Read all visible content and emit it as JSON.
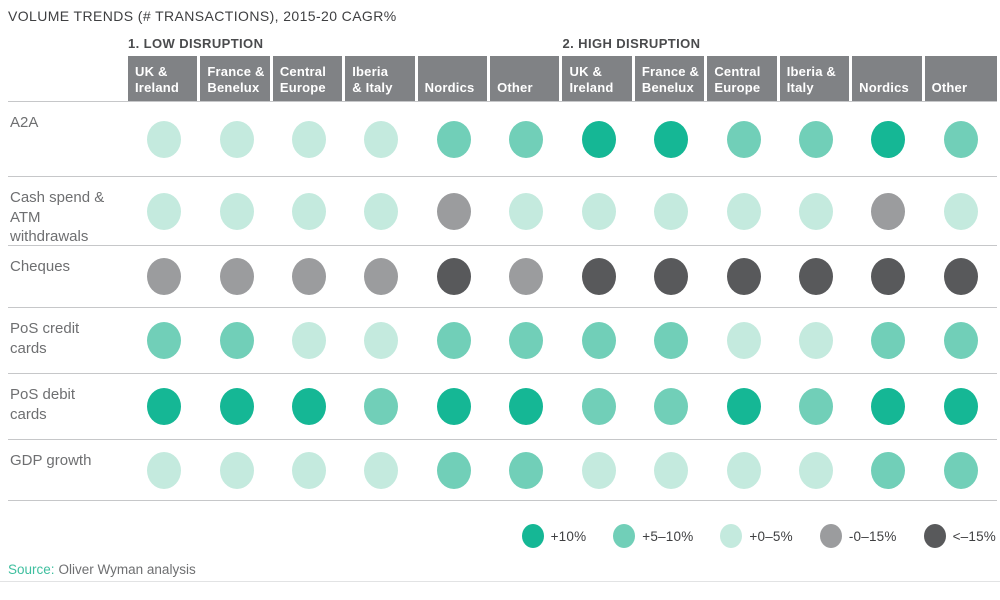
{
  "title": "VOLUME TRENDS (# TRANSACTIONS), 2015-20 CAGR%",
  "groups": [
    {
      "label": "1. LOW DISRUPTION",
      "columns": [
        "UK &\nIreland",
        "France &\nBenelux",
        "Central\nEurope",
        "Iberia\n& Italy",
        "Nordics",
        "Other"
      ]
    },
    {
      "label": "2. HIGH DISRUPTION",
      "columns": [
        "UK &\nIreland",
        "France &\nBenelux",
        "Central\nEurope",
        "Iberia &\nItaly",
        "Nordics",
        "Other"
      ]
    }
  ],
  "colors": {
    "p10": "#15b795",
    "p5_10": "#71cfb8",
    "p0_5": "#c4eade",
    "n0_15": "#9b9c9e",
    "lt_n15": "#58595b"
  },
  "legend": [
    {
      "key": "p10",
      "label": "+10%"
    },
    {
      "key": "p5_10",
      "label": "+5–10%"
    },
    {
      "key": "p0_5",
      "label": "+0–5%"
    },
    {
      "key": "n0_15",
      "label": "-0–15%"
    },
    {
      "key": "lt_n15",
      "label": "<–15%"
    }
  ],
  "chart_data": {
    "type": "heatmap",
    "title": "VOLUME TRENDS (# TRANSACTIONS), 2015-20 CAGR%",
    "column_groups": [
      "1. LOW DISRUPTION",
      "2. HIGH DISRUPTION"
    ],
    "columns": [
      "Low: UK & Ireland",
      "Low: France & Benelux",
      "Low: Central Europe",
      "Low: Iberia & Italy",
      "Low: Nordics",
      "Low: Other",
      "High: UK & Ireland",
      "High: France & Benelux",
      "High: Central Europe",
      "High: Iberia & Italy",
      "High: Nordics",
      "High: Other"
    ],
    "value_scale": {
      "p10": "+10%",
      "p5_10": "+5–10%",
      "p0_5": "+0–5%",
      "n0_15": "-0–15%",
      "lt_n15": "<–15%"
    },
    "rows": [
      {
        "label": "A2A",
        "values": [
          "p0_5",
          "p0_5",
          "p0_5",
          "p0_5",
          "p5_10",
          "p5_10",
          "p10",
          "p10",
          "p5_10",
          "p5_10",
          "p10",
          "p5_10"
        ]
      },
      {
        "label": "Cash spend &\nATM\nwithdrawals",
        "values": [
          "p0_5",
          "p0_5",
          "p0_5",
          "p0_5",
          "n0_15",
          "p0_5",
          "p0_5",
          "p0_5",
          "p0_5",
          "p0_5",
          "n0_15",
          "p0_5"
        ]
      },
      {
        "label": "Cheques",
        "values": [
          "n0_15",
          "n0_15",
          "n0_15",
          "n0_15",
          "lt_n15",
          "n0_15",
          "lt_n15",
          "lt_n15",
          "lt_n15",
          "lt_n15",
          "lt_n15",
          "lt_n15"
        ]
      },
      {
        "label": "PoS credit\ncards",
        "values": [
          "p5_10",
          "p5_10",
          "p0_5",
          "p0_5",
          "p5_10",
          "p5_10",
          "p5_10",
          "p5_10",
          "p0_5",
          "p0_5",
          "p5_10",
          "p5_10"
        ]
      },
      {
        "label": "PoS debit\ncards",
        "values": [
          "p10",
          "p10",
          "p10",
          "p5_10",
          "p10",
          "p10",
          "p5_10",
          "p5_10",
          "p10",
          "p5_10",
          "p10",
          "p10"
        ]
      },
      {
        "label": "GDP growth",
        "values": [
          "p0_5",
          "p0_5",
          "p0_5",
          "p0_5",
          "p5_10",
          "p5_10",
          "p0_5",
          "p0_5",
          "p0_5",
          "p0_5",
          "p5_10",
          "p5_10"
        ]
      }
    ]
  },
  "source": {
    "prefix": "Source:",
    "text": "Oliver Wyman analysis"
  }
}
